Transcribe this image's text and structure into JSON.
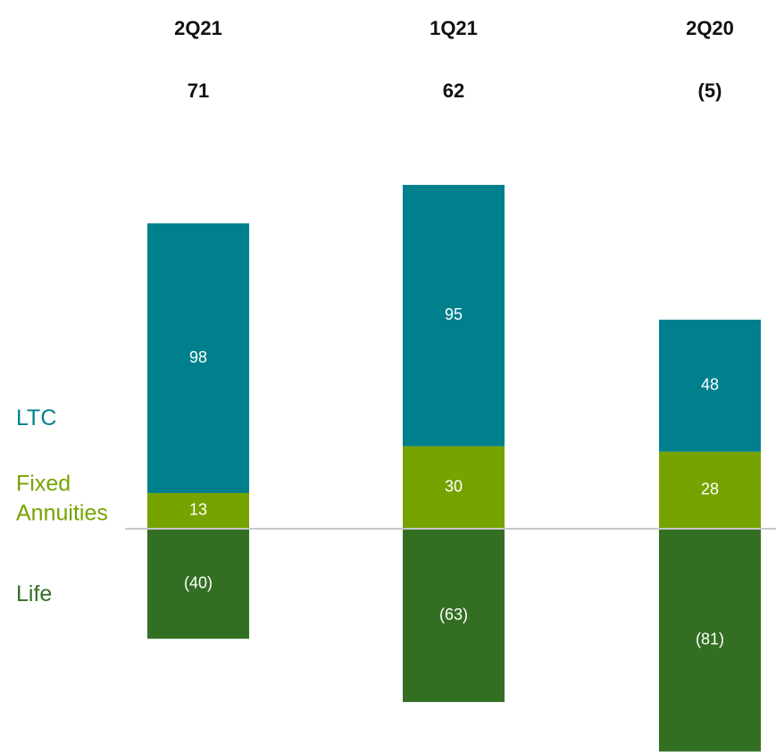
{
  "chart_data": {
    "type": "stacked_bar",
    "categories": [
      "2Q21",
      "1Q21",
      "2Q20"
    ],
    "totals": [
      71,
      62,
      -5
    ],
    "total_labels": [
      "71",
      "62",
      "(5)"
    ],
    "series": [
      {
        "name": "Life",
        "color": "#336f23",
        "values": [
          -40,
          -63,
          -81
        ],
        "value_labels": [
          "(40)",
          "(63)",
          "(81)"
        ]
      },
      {
        "name": "Fixed Annuities",
        "color": "#77a300",
        "values": [
          13,
          30,
          28
        ]
      },
      {
        "name": "LTC",
        "color": "#00808d",
        "values": [
          98,
          95,
          48
        ]
      }
    ]
  }
}
